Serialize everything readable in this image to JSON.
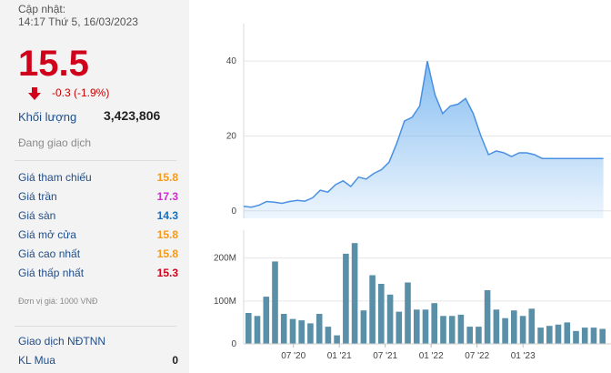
{
  "quote": {
    "updated_label": "Cập nhật:",
    "updated_time": "14:17 Thứ 5, 16/03/2023",
    "price": "15.5",
    "change": "-0.3 (-1.9%)",
    "volume_label": "Khối lượng",
    "volume_value": "3,423,806",
    "status": "Đang giao dịch"
  },
  "price_rows": [
    {
      "label": "Giá tham chiếu",
      "value": "15.8",
      "color": "#f59a1b"
    },
    {
      "label": "Giá trần",
      "value": "17.3",
      "color": "#cc2fcc"
    },
    {
      "label": "Giá sàn",
      "value": "14.3",
      "color": "#1b6fb8"
    },
    {
      "label": "Giá mở cửa",
      "value": "15.8",
      "color": "#f59a1b"
    },
    {
      "label": "Giá cao nhất",
      "value": "15.8",
      "color": "#f59a1b"
    },
    {
      "label": "Giá thấp nhất",
      "value": "15.3",
      "color": "#d0021b"
    }
  ],
  "unit_note": "Đơn vị giá: 1000 VNĐ",
  "foreign": {
    "title": "Giao dịch NĐTNN",
    "rows": [
      {
        "label": "KL Mua",
        "value": "0"
      }
    ]
  },
  "colors": {
    "up_down_arrow": "#d0021b",
    "area_fill": "#6fb1ee",
    "bar": "#5a8fa8"
  },
  "chart_data": [
    {
      "type": "area",
      "title": "",
      "ylabel": "",
      "ylim": [
        -2,
        50
      ],
      "yticks": [
        0,
        20,
        40
      ],
      "x_domain": [
        0,
        48
      ],
      "x": [
        0,
        1,
        2,
        3,
        4,
        5,
        6,
        7,
        8,
        9,
        10,
        11,
        12,
        13,
        14,
        15,
        16,
        17,
        18,
        19,
        20,
        21,
        22,
        23,
        24,
        25,
        26,
        27,
        28,
        29,
        30,
        31,
        32,
        33,
        34,
        35,
        36,
        37,
        38,
        39,
        40,
        41,
        42,
        43,
        44,
        45,
        46,
        47
      ],
      "series": [
        {
          "values": [
            1.2,
            1.0,
            1.5,
            2.5,
            2.3,
            2.0,
            2.5,
            2.8,
            2.6,
            3.5,
            5.5,
            5.0,
            7.0,
            8.0,
            6.5,
            9.0,
            8.5,
            10.0,
            11.0,
            13.0,
            18.0,
            24.0,
            25.0,
            28.0,
            40.0,
            31.0,
            26.0,
            28.0,
            28.5,
            30.0,
            26.0,
            20.0,
            15.0,
            16.0,
            15.5,
            14.5,
            15.5,
            15.5,
            15.0,
            14.0,
            14.0,
            14.0,
            14.0,
            14.0,
            14.0,
            14.0,
            14.0,
            14.0
          ]
        }
      ]
    },
    {
      "type": "bar",
      "title": "",
      "ylabel": "",
      "ylim": [
        0,
        265
      ],
      "yticks": [
        {
          "value": 0,
          "label": "0"
        },
        {
          "value": 100,
          "label": "100M"
        },
        {
          "value": 200,
          "label": "200M"
        }
      ],
      "x_domain": [
        0,
        48
      ],
      "x_ticks": [
        {
          "x": 6.5,
          "label": "07 '20"
        },
        {
          "x": 12.5,
          "label": "01 '21"
        },
        {
          "x": 18.5,
          "label": "07 '21"
        },
        {
          "x": 24.5,
          "label": "01 '22"
        },
        {
          "x": 30.5,
          "label": "07 '22"
        },
        {
          "x": 36.5,
          "label": "01 '23"
        }
      ],
      "values": [
        72,
        65,
        110,
        192,
        70,
        58,
        55,
        48,
        70,
        40,
        20,
        210,
        235,
        78,
        160,
        140,
        115,
        75,
        143,
        80,
        80,
        95,
        65,
        65,
        68,
        40,
        40,
        125,
        80,
        60,
        78,
        65,
        82,
        38,
        42,
        45,
        50,
        30,
        38,
        38,
        35
      ]
    }
  ]
}
